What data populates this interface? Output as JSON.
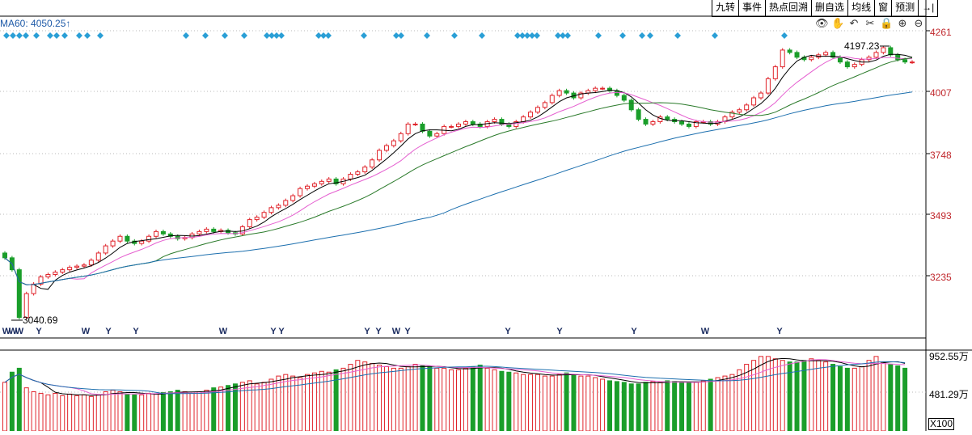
{
  "toolbar": {
    "buttons": [
      "九转",
      "事件",
      "热点回溯",
      "删自选",
      "均线",
      "窗",
      "预测"
    ],
    "arrow_label": "→|"
  },
  "ma_label": "MA60: 4050.25↑",
  "icons": [
    "eye-icon",
    "hand-icon",
    "undo-icon",
    "scissors-icon",
    "lock-icon",
    "zoom-in-icon",
    "zoom-out-icon"
  ],
  "price_axis": [
    "4261",
    "4007",
    "3748",
    "3493",
    "3235"
  ],
  "volume_axis": [
    "952.55万",
    "481.29万"
  ],
  "volume_unit": "X100",
  "annotations": {
    "high": "4197.23",
    "low": "3040.69"
  },
  "y_markers": [
    "W",
    "W",
    "W",
    "Y",
    "W",
    "Y",
    "Y",
    "W",
    "Y",
    "Y",
    "Y",
    "Y",
    "W",
    "Y",
    "Y",
    "Y",
    "Y",
    "W",
    "Y"
  ],
  "colors": {
    "up": "#e0242b",
    "down": "#1a9e2a",
    "ma5": "#000000",
    "ma10": "#e55fd0",
    "ma20": "#2a7a2a",
    "ma60": "#1c6fae",
    "grid": "#b9b9b9",
    "diamond": "#2a9fd6"
  },
  "chart_data": {
    "type": "candlestick",
    "ylim": [
      3000,
      4300
    ],
    "ticks": [
      4261,
      4007,
      3748,
      3493,
      3235
    ],
    "high": 4197.23,
    "low": 3040.69,
    "ma60_last": 4050.25,
    "volume_ticks": [
      "952.55万",
      "481.29万"
    ],
    "series_close": [
      3310,
      3260,
      3060,
      3160,
      3200,
      3230,
      3240,
      3250,
      3260,
      3270,
      3275,
      3280,
      3300,
      3330,
      3360,
      3380,
      3400,
      3380,
      3370,
      3380,
      3400,
      3420,
      3410,
      3400,
      3390,
      3395,
      3410,
      3420,
      3430,
      3420,
      3425,
      3415,
      3410,
      3440,
      3470,
      3480,
      3500,
      3520,
      3530,
      3550,
      3570,
      3600,
      3610,
      3620,
      3630,
      3640,
      3620,
      3640,
      3660,
      3670,
      3690,
      3720,
      3760,
      3780,
      3800,
      3830,
      3870,
      3870,
      3840,
      3820,
      3830,
      3860,
      3860,
      3870,
      3880,
      3870,
      3860,
      3880,
      3890,
      3870,
      3860,
      3880,
      3900,
      3920,
      3940,
      3960,
      3990,
      4010,
      4000,
      3980,
      4000,
      4010,
      4020,
      4020,
      4010,
      3990,
      3970,
      3930,
      3890,
      3870,
      3880,
      3900,
      3890,
      3880,
      3870,
      3860,
      3880,
      3880,
      3870,
      3880,
      3900,
      3920,
      3930,
      3950,
      3980,
      4000,
      4060,
      4110,
      4180,
      4170,
      4150,
      4140,
      4150,
      4160,
      4170,
      4150,
      4130,
      4110,
      4120,
      4140,
      4150,
      4170,
      4190,
      4160,
      4140,
      4130,
      4130
    ],
    "volume_relative": [
      0.62,
      0.75,
      0.8,
      0.55,
      0.5,
      0.48,
      0.46,
      0.48,
      0.45,
      0.47,
      0.45,
      0.46,
      0.44,
      0.46,
      0.5,
      0.52,
      0.5,
      0.47,
      0.46,
      0.46,
      0.48,
      0.47,
      0.49,
      0.5,
      0.52,
      0.5,
      0.48,
      0.5,
      0.52,
      0.55,
      0.56,
      0.58,
      0.6,
      0.62,
      0.64,
      0.6,
      0.62,
      0.66,
      0.7,
      0.72,
      0.7,
      0.68,
      0.72,
      0.74,
      0.76,
      0.75,
      0.78,
      0.8,
      0.85,
      0.9,
      0.88,
      0.86,
      0.84,
      0.82,
      0.8,
      0.8,
      0.82,
      0.85,
      0.83,
      0.82,
      0.8,
      0.8,
      0.78,
      0.78,
      0.8,
      0.82,
      0.84,
      0.8,
      0.78,
      0.76,
      0.75,
      0.74,
      0.72,
      0.72,
      0.72,
      0.7,
      0.7,
      0.72,
      0.74,
      0.72,
      0.7,
      0.7,
      0.68,
      0.66,
      0.64,
      0.63,
      0.62,
      0.6,
      0.6,
      0.62,
      0.63,
      0.62,
      0.64,
      0.63,
      0.62,
      0.62,
      0.62,
      0.64,
      0.66,
      0.68,
      0.7,
      0.72,
      0.78,
      0.85,
      0.9,
      0.95,
      0.95,
      0.92,
      0.9,
      0.88,
      0.88,
      0.9,
      0.92,
      0.9,
      0.88,
      0.85,
      0.82,
      0.8,
      0.8,
      0.82,
      0.9,
      0.95,
      0.88,
      0.85,
      0.83,
      0.8
    ]
  }
}
